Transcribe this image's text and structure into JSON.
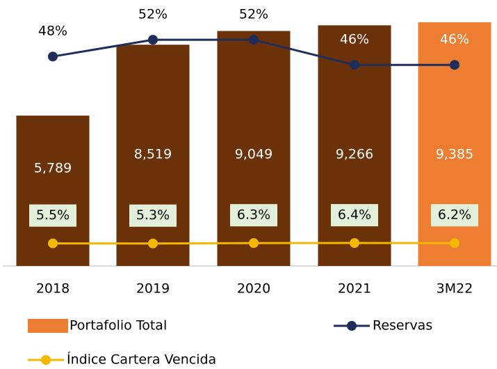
{
  "chart_data": {
    "type": "bar",
    "categories": [
      "2018",
      "2019",
      "2020",
      "2021",
      "3M22"
    ],
    "ylim": [
      0,
      10000
    ],
    "y2lim": [
      -2,
      60
    ],
    "y3lim": [
      -48,
      568
    ],
    "series": [
      {
        "name": "Portafolio Total",
        "type": "bar",
        "colors": [
          "#6b3108",
          "#6b3108",
          "#6b3108",
          "#6b3108",
          "#ed7d31"
        ],
        "color": "#ed7d31",
        "values": [
          5789,
          8519,
          9049,
          9266,
          9385
        ],
        "value_labels": [
          "5,789",
          "8,519",
          "9,049",
          "9,266",
          "9,385"
        ]
      },
      {
        "name": "Reservas",
        "type": "line",
        "axis": "y2",
        "color": "#1f2d5a",
        "values": [
          48,
          52,
          52,
          46,
          46
        ],
        "value_labels": [
          "48%",
          "52%",
          "52%",
          "46%",
          "46%"
        ]
      },
      {
        "name": "Índice Cartera Vencida",
        "type": "line",
        "axis": "y3",
        "color": "#f5b800",
        "label_box": "#e2efd9",
        "values": [
          5.5,
          5.3,
          6.3,
          6.4,
          6.2
        ],
        "value_labels": [
          "5.5%",
          "5.3%",
          "6.3%",
          "6.4%",
          "6.2%"
        ]
      }
    ]
  }
}
